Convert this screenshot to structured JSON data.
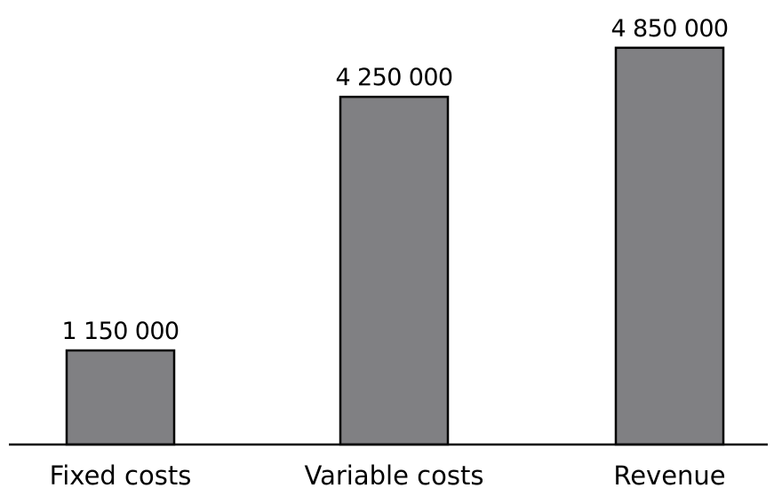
{
  "chart_data": {
    "type": "bar",
    "categories": [
      "Fixed costs",
      "Variable costs",
      "Revenue"
    ],
    "values": [
      1150000,
      4250000,
      4850000
    ],
    "data_labels": [
      "1 150 000",
      "4 250 000",
      "4 850 000"
    ],
    "title": "",
    "xlabel": "",
    "ylabel": "",
    "ylim": [
      0,
      5000000
    ],
    "grid": false,
    "legend": "none",
    "colors": {
      "bar_fill": "#808083",
      "bar_stroke": "#000000",
      "axis": "#000000",
      "text": "#000000",
      "background": "#ffffff"
    }
  }
}
